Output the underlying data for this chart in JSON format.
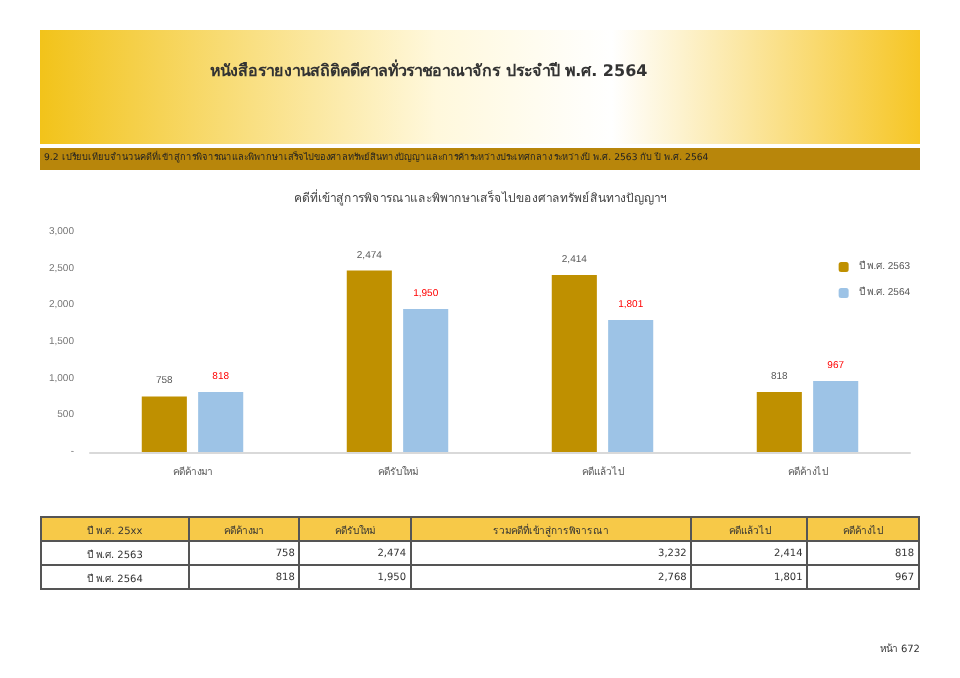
{
  "chart_data": {
    "type": "bar",
    "title": "คดีที่เข้าสู่การพิจารณาและพิพากษาเสร็จไปของศาลทรัพย์สินทางปัญญาฯ",
    "categories": [
      "คดีค้างมา",
      "คดีรับใหม่",
      "คดีแล้วไป",
      "คดีค้างไป"
    ],
    "series": [
      {
        "name": "ปี พ.ศ. 2563",
        "color": "#bf9000",
        "values": [
          758,
          2474,
          2414,
          818
        ],
        "value_labels": [
          "758",
          "2,474",
          "2,414",
          "818"
        ]
      },
      {
        "name": "ปี พ.ศ. 2564",
        "color": "#9dc3e6",
        "values": [
          818,
          1950,
          1801,
          967
        ],
        "value_labels": [
          "818",
          "1,950",
          "1,801",
          "967"
        ]
      }
    ],
    "ylim": [
      0,
      3000
    ],
    "yticks": [
      {
        "value": 0,
        "label": "-"
      },
      {
        "value": 500,
        "label": "500"
      },
      {
        "value": 1000,
        "label": "1,000"
      },
      {
        "value": 1500,
        "label": "1,500"
      },
      {
        "value": 2000,
        "label": "2,000"
      },
      {
        "value": 2500,
        "label": "2,500"
      },
      {
        "value": 3000,
        "label": "3,000"
      }
    ],
    "legend": "right",
    "annotations": [
      "หนังสือรายงานสถิติคดีศาลทั่วราชอาณาจักร ประจำปี พ.ศ. 2564",
      "9.2 เปรียบเทียบจำนวนคดีที่เข้าสู่การพิจารณาและพิพากษาเสร็จไปของศาลทรัพย์สินทางปัญญาและการค้าระหว่างประเทศกลาง ระหว่างปี พ.ศ. 2563 กับ ปี พ.ศ. 2564",
      "ปี พ.ศ. 25xx",
      "รวมคดีที่เข้าสู่การพิจารณา",
      "3,232",
      "2,768",
      "หน้า 672"
    ]
  }
}
